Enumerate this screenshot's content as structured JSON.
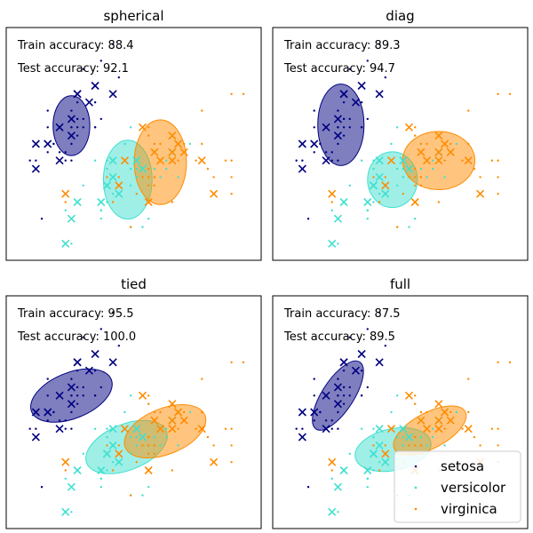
{
  "chart_data": [
    {
      "type": "scatter",
      "title": "spherical",
      "train_label": "Train accuracy: 88.4",
      "test_label": "Test accuracy: 92.1",
      "ellipses": [
        {
          "class": "setosa",
          "color": "#000080",
          "cx": 5.0,
          "cy": 3.42,
          "w": 0.62,
          "h": 0.72,
          "angle": 0
        },
        {
          "class": "versicolor",
          "color": "#40e0d0",
          "cx": 5.95,
          "cy": 2.77,
          "w": 0.82,
          "h": 0.95,
          "angle": 0
        },
        {
          "class": "virginica",
          "color": "#ff8c00",
          "cx": 6.5,
          "cy": 2.98,
          "w": 0.88,
          "h": 1.02,
          "angle": 0
        }
      ]
    },
    {
      "type": "scatter",
      "title": "diag",
      "train_label": "Train accuracy: 89.3",
      "test_label": "Test accuracy: 94.7",
      "ellipses": [
        {
          "class": "setosa",
          "color": "#000080",
          "cx": 5.05,
          "cy": 3.43,
          "w": 0.78,
          "h": 0.98,
          "angle": 0
        },
        {
          "class": "versicolor",
          "color": "#40e0d0",
          "cx": 5.92,
          "cy": 2.77,
          "w": 0.84,
          "h": 0.67,
          "angle": 0
        },
        {
          "class": "virginica",
          "color": "#ff8c00",
          "cx": 6.7,
          "cy": 3.0,
          "w": 1.22,
          "h": 0.7,
          "angle": 0
        }
      ]
    },
    {
      "type": "scatter",
      "title": "tied",
      "train_label": "Train accuracy: 95.5",
      "test_label": "Test accuracy: 100.0",
      "ellipses": [
        {
          "class": "setosa",
          "color": "#000080",
          "cx": 5.0,
          "cy": 3.4,
          "w": 1.45,
          "h": 0.55,
          "angle": -22
        },
        {
          "class": "versicolor",
          "color": "#40e0d0",
          "cx": 5.93,
          "cy": 2.78,
          "w": 1.45,
          "h": 0.55,
          "angle": -22
        },
        {
          "class": "virginica",
          "color": "#ff8c00",
          "cx": 6.58,
          "cy": 2.97,
          "w": 1.45,
          "h": 0.55,
          "angle": -22
        }
      ]
    },
    {
      "type": "scatter",
      "title": "full",
      "train_label": "Train accuracy: 87.5",
      "test_label": "Test accuracy: 89.5",
      "ellipses": [
        {
          "class": "setosa",
          "color": "#000080",
          "cx": 5.0,
          "cy": 3.4,
          "w": 1.35,
          "h": 0.38,
          "angle": -57
        },
        {
          "class": "versicolor",
          "color": "#40e0d0",
          "cx": 5.93,
          "cy": 2.75,
          "w": 1.3,
          "h": 0.5,
          "angle": -12
        },
        {
          "class": "virginica",
          "color": "#ff8c00",
          "cx": 6.55,
          "cy": 2.98,
          "w": 1.35,
          "h": 0.43,
          "angle": -28
        }
      ]
    }
  ],
  "axes": {
    "xlim": [
      3.9,
      8.2
    ],
    "ylim": [
      1.8,
      4.6
    ]
  },
  "legend": {
    "location": "lower right of last panel",
    "items": [
      {
        "label": "setosa",
        "color": "#000080"
      },
      {
        "label": "versicolor",
        "color": "#40e0d0"
      },
      {
        "label": "virginica",
        "color": "#ff8c00"
      }
    ]
  },
  "train_points": {
    "setosa": [
      [
        5.1,
        3.5
      ],
      [
        4.9,
        3.0
      ],
      [
        4.7,
        3.2
      ],
      [
        4.6,
        3.1
      ],
      [
        5.0,
        3.6
      ],
      [
        5.4,
        3.9
      ],
      [
        4.6,
        3.4
      ],
      [
        5.0,
        3.4
      ],
      [
        4.4,
        2.9
      ],
      [
        4.9,
        3.1
      ],
      [
        5.4,
        3.7
      ],
      [
        4.8,
        3.4
      ],
      [
        4.8,
        3.0
      ],
      [
        4.3,
        3.0
      ],
      [
        5.8,
        4.0
      ],
      [
        5.7,
        4.4
      ],
      [
        5.4,
        3.9
      ],
      [
        5.1,
        3.5
      ],
      [
        5.7,
        3.8
      ],
      [
        5.1,
        3.8
      ],
      [
        5.4,
        3.4
      ],
      [
        5.1,
        3.7
      ],
      [
        4.6,
        3.6
      ],
      [
        5.1,
        3.3
      ],
      [
        4.8,
        3.4
      ],
      [
        5.0,
        3.0
      ],
      [
        5.0,
        3.4
      ],
      [
        5.2,
        3.5
      ],
      [
        5.2,
        3.4
      ],
      [
        4.7,
        3.2
      ],
      [
        4.8,
        3.1
      ],
      [
        5.4,
        3.4
      ],
      [
        5.2,
        4.1
      ],
      [
        5.5,
        4.2
      ],
      [
        5.0,
        3.2
      ],
      [
        5.5,
        3.5
      ],
      [
        4.4,
        3.0
      ],
      [
        5.1,
        3.4
      ],
      [
        4.5,
        2.3
      ]
    ],
    "versicolor": [
      [
        7.0,
        3.2
      ],
      [
        6.4,
        3.2
      ],
      [
        6.9,
        3.1
      ],
      [
        5.5,
        2.3
      ],
      [
        6.5,
        2.8
      ],
      [
        5.7,
        2.8
      ],
      [
        6.3,
        3.3
      ],
      [
        4.9,
        2.4
      ],
      [
        6.6,
        2.9
      ],
      [
        5.2,
        2.7
      ],
      [
        5.0,
        2.0
      ],
      [
        5.9,
        3.0
      ],
      [
        6.0,
        2.2
      ],
      [
        6.1,
        2.9
      ],
      [
        5.6,
        2.9
      ],
      [
        6.7,
        3.1
      ],
      [
        5.6,
        3.0
      ],
      [
        5.8,
        2.7
      ],
      [
        6.2,
        2.2
      ],
      [
        5.6,
        2.5
      ],
      [
        5.9,
        3.2
      ],
      [
        6.1,
        2.8
      ],
      [
        6.3,
        2.5
      ],
      [
        6.1,
        2.8
      ],
      [
        6.4,
        2.9
      ],
      [
        6.6,
        3.0
      ],
      [
        6.8,
        2.8
      ],
      [
        6.7,
        3.0
      ],
      [
        6.0,
        2.9
      ],
      [
        5.7,
        2.6
      ],
      [
        5.5,
        2.4
      ],
      [
        5.5,
        2.4
      ],
      [
        5.8,
        2.7
      ],
      [
        6.0,
        2.7
      ],
      [
        5.4,
        3.0
      ],
      [
        6.0,
        3.4
      ],
      [
        6.7,
        3.1
      ],
      [
        6.3,
        2.3
      ]
    ],
    "virginica": [
      [
        6.3,
        3.3
      ],
      [
        5.8,
        2.7
      ],
      [
        7.1,
        3.0
      ],
      [
        6.3,
        2.9
      ],
      [
        6.5,
        3.0
      ],
      [
        7.6,
        3.0
      ],
      [
        4.9,
        2.5
      ],
      [
        7.3,
        2.9
      ],
      [
        6.7,
        2.5
      ],
      [
        7.2,
        3.6
      ],
      [
        6.5,
        3.2
      ],
      [
        6.4,
        2.7
      ],
      [
        6.8,
        3.0
      ],
      [
        5.7,
        2.5
      ],
      [
        5.8,
        2.8
      ],
      [
        6.4,
        3.2
      ],
      [
        6.5,
        3.0
      ],
      [
        7.7,
        3.8
      ],
      [
        7.7,
        2.6
      ],
      [
        6.0,
        2.2
      ],
      [
        6.9,
        3.2
      ],
      [
        5.6,
        2.8
      ],
      [
        7.7,
        2.8
      ],
      [
        6.3,
        2.7
      ],
      [
        6.7,
        3.3
      ],
      [
        7.2,
        3.2
      ],
      [
        6.2,
        2.8
      ],
      [
        6.1,
        3.0
      ],
      [
        6.4,
        2.8
      ],
      [
        7.2,
        3.0
      ],
      [
        7.4,
        2.8
      ],
      [
        7.9,
        3.8
      ],
      [
        6.4,
        2.8
      ],
      [
        6.3,
        2.8
      ],
      [
        6.1,
        2.6
      ],
      [
        7.7,
        3.0
      ],
      [
        6.3,
        3.4
      ],
      [
        6.4,
        3.1
      ]
    ]
  },
  "test_points": {
    "setosa": [
      [
        4.4,
        3.2
      ],
      [
        5.0,
        3.5
      ],
      [
        5.1,
        3.8
      ],
      [
        4.8,
        3.0
      ],
      [
        5.1,
        3.8
      ],
      [
        4.6,
        3.2
      ],
      [
        5.3,
        3.7
      ],
      [
        5.0,
        3.3
      ],
      [
        4.8,
        3.4
      ],
      [
        5.7,
        3.8
      ],
      [
        4.4,
        2.9
      ],
      [
        5.4,
        3.9
      ]
    ],
    "versicolor": [
      [
        5.6,
        2.7
      ],
      [
        5.5,
        2.5
      ],
      [
        6.1,
        3.0
      ],
      [
        5.8,
        2.6
      ],
      [
        5.0,
        2.3
      ],
      [
        5.6,
        2.7
      ],
      [
        5.7,
        3.0
      ],
      [
        6.2,
        2.9
      ],
      [
        5.1,
        2.5
      ],
      [
        5.7,
        2.8
      ],
      [
        4.9,
        2.0
      ],
      [
        6.7,
        3.1
      ]
    ],
    "virginica": [
      [
        6.7,
        3.1
      ],
      [
        6.9,
        3.1
      ],
      [
        5.8,
        2.7
      ],
      [
        6.8,
        3.2
      ],
      [
        6.7,
        3.3
      ],
      [
        6.7,
        3.0
      ],
      [
        6.3,
        2.5
      ],
      [
        6.5,
        3.0
      ],
      [
        6.2,
        3.4
      ],
      [
        5.9,
        3.0
      ],
      [
        7.2,
        3.0
      ],
      [
        6.4,
        3.1
      ],
      [
        7.4,
        2.6
      ],
      [
        4.9,
        2.6
      ]
    ]
  }
}
